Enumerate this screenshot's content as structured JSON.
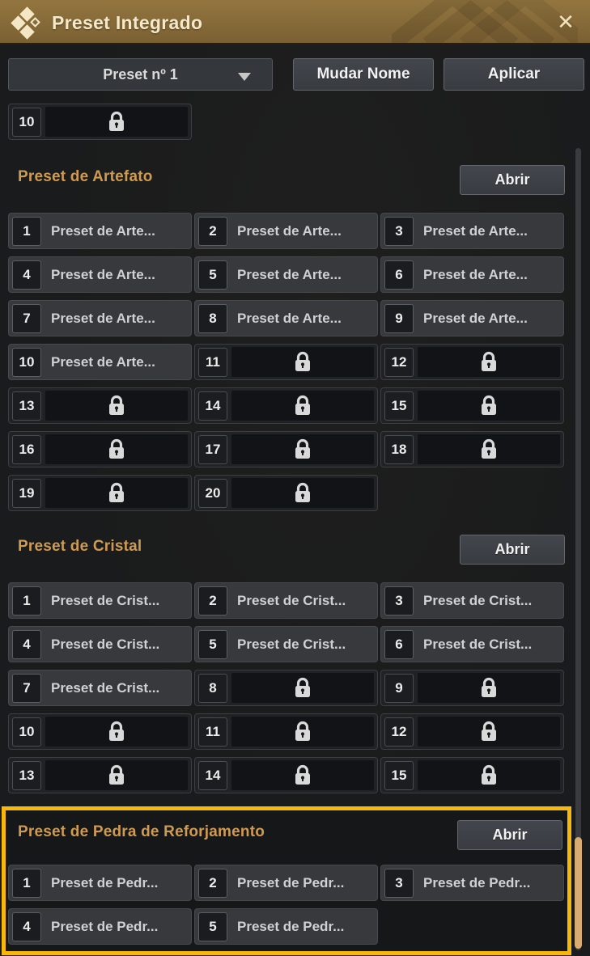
{
  "window": {
    "title": "Preset Integrado"
  },
  "icons": {
    "close_glyph": "✕"
  },
  "toolbar": {
    "preset_dropdown_value": "Preset nº 1",
    "rename_button": "Mudar Nome",
    "apply_button": "Aplicar"
  },
  "partial_slot": {
    "number": "10",
    "locked": true
  },
  "sections": [
    {
      "title": "Preset de Artefato",
      "open_button": "Abrir",
      "highlighted": false,
      "slots": [
        {
          "number": "1",
          "label": "Preset de Arte...",
          "locked": false
        },
        {
          "number": "2",
          "label": "Preset de Arte...",
          "locked": false
        },
        {
          "number": "3",
          "label": "Preset de Arte...",
          "locked": false
        },
        {
          "number": "4",
          "label": "Preset de Arte...",
          "locked": false
        },
        {
          "number": "5",
          "label": "Preset de Arte...",
          "locked": false
        },
        {
          "number": "6",
          "label": "Preset de Arte...",
          "locked": false
        },
        {
          "number": "7",
          "label": "Preset de Arte...",
          "locked": false
        },
        {
          "number": "8",
          "label": "Preset de Arte...",
          "locked": false
        },
        {
          "number": "9",
          "label": "Preset de Arte...",
          "locked": false
        },
        {
          "number": "10",
          "label": "Preset de Arte...",
          "locked": false
        },
        {
          "number": "11",
          "locked": true
        },
        {
          "number": "12",
          "locked": true
        },
        {
          "number": "13",
          "locked": true
        },
        {
          "number": "14",
          "locked": true
        },
        {
          "number": "15",
          "locked": true
        },
        {
          "number": "16",
          "locked": true
        },
        {
          "number": "17",
          "locked": true
        },
        {
          "number": "18",
          "locked": true
        },
        {
          "number": "19",
          "locked": true
        },
        {
          "number": "20",
          "locked": true
        }
      ]
    },
    {
      "title": "Preset de Cristal",
      "open_button": "Abrir",
      "highlighted": false,
      "slots": [
        {
          "number": "1",
          "label": "Preset de Crist...",
          "locked": false
        },
        {
          "number": "2",
          "label": "Preset de Crist...",
          "locked": false
        },
        {
          "number": "3",
          "label": "Preset de Crist...",
          "locked": false
        },
        {
          "number": "4",
          "label": "Preset de Crist...",
          "locked": false
        },
        {
          "number": "5",
          "label": "Preset de Crist...",
          "locked": false
        },
        {
          "number": "6",
          "label": "Preset de Crist...",
          "locked": false
        },
        {
          "number": "7",
          "label": "Preset de Crist...",
          "locked": false
        },
        {
          "number": "8",
          "locked": true
        },
        {
          "number": "9",
          "locked": true
        },
        {
          "number": "10",
          "locked": true
        },
        {
          "number": "11",
          "locked": true
        },
        {
          "number": "12",
          "locked": true
        },
        {
          "number": "13",
          "locked": true
        },
        {
          "number": "14",
          "locked": true
        },
        {
          "number": "15",
          "locked": true
        }
      ]
    },
    {
      "title": "Preset de Pedra de Reforjamento",
      "open_button": "Abrir",
      "highlighted": true,
      "slots": [
        {
          "number": "1",
          "label": "Preset de Pedr...",
          "locked": false
        },
        {
          "number": "2",
          "label": "Preset de Pedr...",
          "locked": false
        },
        {
          "number": "3",
          "label": "Preset de Pedr...",
          "locked": false
        },
        {
          "number": "4",
          "label": "Preset de Pedr...",
          "locked": false
        },
        {
          "number": "5",
          "label": "Preset de Pedr...",
          "locked": false
        }
      ]
    }
  ],
  "colors": {
    "titlebar_gold": "#8a6d3b",
    "section_title": "#cf9a51",
    "highlight_border": "#f7b80a",
    "scrollbar_thumb": "#d8ab70",
    "slot_bg": "#37393d",
    "locked_panel_bg": "#121316"
  }
}
